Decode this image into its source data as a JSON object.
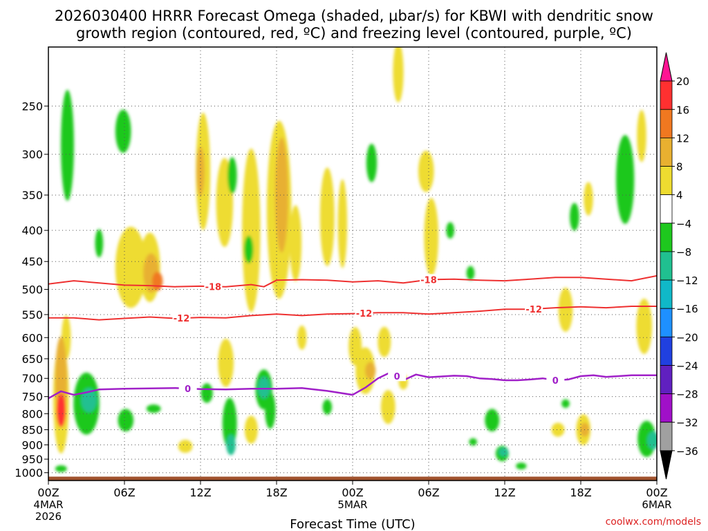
{
  "chart_data": {
    "type": "time-height contour",
    "title_line1": "2026030400 HRRR Forecast Omega (shaded, μbar/s) for KBWI with dendritic snow",
    "title_line2": "growth region (contoured, red, ºC) and freezing level (contoured, purple, ºC)",
    "xlabel": "Forecast Time (UTC)",
    "credit": "coolwx.com/models",
    "time_range_hours": [
      0,
      48
    ],
    "pressure_range_hpa": [
      1030,
      200
    ],
    "x_ticks": [
      {
        "hour": 0,
        "lines": [
          "00Z",
          "4MAR",
          "2026"
        ]
      },
      {
        "hour": 6,
        "lines": [
          "06Z"
        ]
      },
      {
        "hour": 12,
        "lines": [
          "12Z"
        ]
      },
      {
        "hour": 18,
        "lines": [
          "18Z"
        ]
      },
      {
        "hour": 24,
        "lines": [
          "00Z",
          "5MAR"
        ]
      },
      {
        "hour": 30,
        "lines": [
          "06Z"
        ]
      },
      {
        "hour": 36,
        "lines": [
          "12Z"
        ]
      },
      {
        "hour": 42,
        "lines": [
          "18Z"
        ]
      },
      {
        "hour": 48,
        "lines": [
          "00Z",
          "6MAR"
        ]
      }
    ],
    "y_ticks": [
      {
        "p": 250,
        "label": "250"
      },
      {
        "p": 300,
        "label": "300"
      },
      {
        "p": 350,
        "label": "350"
      },
      {
        "p": 400,
        "label": "400"
      },
      {
        "p": 450,
        "label": "450"
      },
      {
        "p": 500,
        "label": "500"
      },
      {
        "p": 550,
        "label": "550"
      },
      {
        "p": 600,
        "label": "600"
      },
      {
        "p": 650,
        "label": "650"
      },
      {
        "p": 700,
        "label": "700"
      },
      {
        "p": 750,
        "label": "750"
      },
      {
        "p": 800,
        "label": "800"
      },
      {
        "p": 850,
        "label": "850"
      },
      {
        "p": 900,
        "label": "900"
      },
      {
        "p": 950,
        "label": "950"
      },
      {
        "p": 1000,
        "label": "1000"
      }
    ],
    "colorbar": {
      "bins": [
        {
          "lo": 20,
          "hi": null,
          "color": "#ff1493"
        },
        {
          "lo": 16,
          "hi": 20,
          "color": "#ff3030"
        },
        {
          "lo": 12,
          "hi": 16,
          "color": "#f07820"
        },
        {
          "lo": 8,
          "hi": 12,
          "color": "#e8b030"
        },
        {
          "lo": 4,
          "hi": 8,
          "color": "#eedc30"
        },
        {
          "lo": -4,
          "hi": 4,
          "color": "#ffffff"
        },
        {
          "lo": -8,
          "hi": -4,
          "color": "#1ec81e"
        },
        {
          "lo": -12,
          "hi": -8,
          "color": "#20c090"
        },
        {
          "lo": -16,
          "hi": -12,
          "color": "#10b8c8"
        },
        {
          "lo": -20,
          "hi": -16,
          "color": "#1e90ff"
        },
        {
          "lo": -24,
          "hi": -20,
          "color": "#2040e0"
        },
        {
          "lo": -28,
          "hi": -24,
          "color": "#6020c0"
        },
        {
          "lo": -32,
          "hi": -28,
          "color": "#a010c8"
        },
        {
          "lo": -36,
          "hi": -32,
          "color": "#a0a0a0"
        },
        {
          "lo": null,
          "hi": -36,
          "color": "#000000"
        }
      ],
      "tick_labels": [
        "20",
        "16",
        "12",
        "8",
        "4",
        "−4",
        "−8",
        "−12",
        "−16",
        "−20",
        "−24",
        "−28",
        "−32",
        "−36"
      ]
    },
    "omega_regions": [
      {
        "t": 1.0,
        "p": 755,
        "dt": 0.8,
        "dp": 310,
        "value": 5
      },
      {
        "t": 1.0,
        "p": 700,
        "dt": 0.5,
        "dp": 220,
        "value": 10
      },
      {
        "t": 1.0,
        "p": 790,
        "dt": 0.3,
        "dp": 100,
        "value": 17
      },
      {
        "t": 1.5,
        "p": 290,
        "dt": 0.6,
        "dp": 120,
        "value": -6
      },
      {
        "t": 1.0,
        "p": 985,
        "dt": 0.5,
        "dp": 25,
        "value": -6
      },
      {
        "t": 3.0,
        "p": 770,
        "dt": 1.6,
        "dp": 180,
        "value": -6
      },
      {
        "t": 3.2,
        "p": 760,
        "dt": 0.8,
        "dp": 70,
        "value": -10
      },
      {
        "t": 4.0,
        "p": 420,
        "dt": 0.2,
        "dp": 45,
        "value": -6
      },
      {
        "t": 5.9,
        "p": 275,
        "dt": 0.8,
        "dp": 45,
        "value": -6
      },
      {
        "t": 6.1,
        "p": 820,
        "dt": 0.8,
        "dp": 70,
        "value": -6
      },
      {
        "t": 8.3,
        "p": 785,
        "dt": 0.7,
        "dp": 25,
        "value": -6
      },
      {
        "t": 6.5,
        "p": 460,
        "dt": 2.0,
        "dp": 140,
        "value": 5
      },
      {
        "t": 8.0,
        "p": 460,
        "dt": 1.2,
        "dp": 120,
        "value": 5
      },
      {
        "t": 8.1,
        "p": 470,
        "dt": 0.8,
        "dp": 70,
        "value": 10
      },
      {
        "t": 8.6,
        "p": 485,
        "dt": 0.4,
        "dp": 35,
        "value": 13
      },
      {
        "t": 10.8,
        "p": 905,
        "dt": 0.7,
        "dp": 45,
        "value": 5
      },
      {
        "t": 12.2,
        "p": 320,
        "dt": 0.7,
        "dp": 140,
        "value": 5
      },
      {
        "t": 12.0,
        "p": 320,
        "dt": 0.2,
        "dp": 60,
        "value": 10
      },
      {
        "t": 12.5,
        "p": 740,
        "dt": 0.5,
        "dp": 55,
        "value": -6
      },
      {
        "t": 13.9,
        "p": 360,
        "dt": 0.9,
        "dp": 120,
        "value": 5
      },
      {
        "t": 14.0,
        "p": 660,
        "dt": 0.8,
        "dp": 120,
        "value": 5
      },
      {
        "t": 14.3,
        "p": 830,
        "dt": 0.7,
        "dp": 160,
        "value": -6
      },
      {
        "t": 14.4,
        "p": 900,
        "dt": 0.3,
        "dp": 70,
        "value": -12
      },
      {
        "t": 14.5,
        "p": 325,
        "dt": 0.3,
        "dp": 45,
        "value": -6
      },
      {
        "t": 15.8,
        "p": 430,
        "dt": 0.3,
        "dp": 45,
        "value": -6
      },
      {
        "t": 16.0,
        "p": 400,
        "dt": 1.0,
        "dp": 240,
        "value": 5
      },
      {
        "t": 16.0,
        "p": 850,
        "dt": 0.6,
        "dp": 90,
        "value": 5
      },
      {
        "t": 17.0,
        "p": 730,
        "dt": 0.9,
        "dp": 110,
        "value": -6
      },
      {
        "t": 17.0,
        "p": 725,
        "dt": 0.5,
        "dp": 60,
        "value": -10
      },
      {
        "t": 17.5,
        "p": 790,
        "dt": 0.4,
        "dp": 110,
        "value": -6
      },
      {
        "t": 18.2,
        "p": 370,
        "dt": 1.5,
        "dp": 240,
        "value": 5
      },
      {
        "t": 18.4,
        "p": 350,
        "dt": 0.6,
        "dp": 150,
        "value": 10
      },
      {
        "t": 19.5,
        "p": 420,
        "dt": 0.5,
        "dp": 120,
        "value": 5
      },
      {
        "t": 20.0,
        "p": 600,
        "dt": 0.3,
        "dp": 55,
        "value": 5
      },
      {
        "t": 22.0,
        "p": 380,
        "dt": 0.7,
        "dp": 140,
        "value": 5
      },
      {
        "t": 22.0,
        "p": 780,
        "dt": 0.3,
        "dp": 45,
        "value": -6
      },
      {
        "t": 23.2,
        "p": 390,
        "dt": 0.3,
        "dp": 130,
        "value": 5
      },
      {
        "t": 25.5,
        "p": 310,
        "dt": 0.4,
        "dp": 45,
        "value": -6
      },
      {
        "t": 24.2,
        "p": 620,
        "dt": 0.6,
        "dp": 90,
        "value": 5
      },
      {
        "t": 25.0,
        "p": 680,
        "dt": 1.1,
        "dp": 120,
        "value": 5
      },
      {
        "t": 25.4,
        "p": 680,
        "dt": 0.4,
        "dp": 45,
        "value": 10
      },
      {
        "t": 26.5,
        "p": 610,
        "dt": 0.6,
        "dp": 70,
        "value": 5
      },
      {
        "t": 26.8,
        "p": 780,
        "dt": 0.7,
        "dp": 100,
        "value": 5
      },
      {
        "t": 27.6,
        "p": 220,
        "dt": 0.4,
        "dp": 50,
        "value": 5
      },
      {
        "t": 28.0,
        "p": 710,
        "dt": 0.3,
        "dp": 40,
        "value": 5
      },
      {
        "t": 29.8,
        "p": 320,
        "dt": 0.8,
        "dp": 50,
        "value": 5
      },
      {
        "t": 30.2,
        "p": 410,
        "dt": 0.7,
        "dp": 120,
        "value": 5
      },
      {
        "t": 31.7,
        "p": 400,
        "dt": 0.2,
        "dp": 25,
        "value": -6
      },
      {
        "t": 33.3,
        "p": 470,
        "dt": 0.2,
        "dp": 25,
        "value": -6
      },
      {
        "t": 33.5,
        "p": 890,
        "dt": 0.2,
        "dp": 25,
        "value": -6
      },
      {
        "t": 35.0,
        "p": 820,
        "dt": 0.7,
        "dp": 70,
        "value": -6
      },
      {
        "t": 35.8,
        "p": 930,
        "dt": 0.6,
        "dp": 55,
        "value": -6
      },
      {
        "t": 35.9,
        "p": 925,
        "dt": 0.3,
        "dp": 30,
        "value": -12
      },
      {
        "t": 37.3,
        "p": 975,
        "dt": 0.4,
        "dp": 25,
        "value": -6
      },
      {
        "t": 40.2,
        "p": 850,
        "dt": 0.6,
        "dp": 45,
        "value": 5
      },
      {
        "t": 40.8,
        "p": 540,
        "dt": 0.7,
        "dp": 90,
        "value": 5
      },
      {
        "t": 40.8,
        "p": 770,
        "dt": 0.2,
        "dp": 25,
        "value": -6
      },
      {
        "t": 41.5,
        "p": 380,
        "dt": 0.3,
        "dp": 40,
        "value": -6
      },
      {
        "t": 42.6,
        "p": 355,
        "dt": 0.3,
        "dp": 45,
        "value": 5
      },
      {
        "t": 42.2,
        "p": 850,
        "dt": 0.7,
        "dp": 100,
        "value": 5
      },
      {
        "t": 42.3,
        "p": 850,
        "dt": 0.3,
        "dp": 45,
        "value": 10
      },
      {
        "t": 45.5,
        "p": 330,
        "dt": 1.0,
        "dp": 110,
        "value": -6
      },
      {
        "t": 46.8,
        "p": 280,
        "dt": 0.3,
        "dp": 55,
        "value": 5
      },
      {
        "t": 47.0,
        "p": 575,
        "dt": 0.8,
        "dp": 120,
        "value": 5
      },
      {
        "t": 47.2,
        "p": 880,
        "dt": 1.0,
        "dp": 120,
        "value": -6
      },
      {
        "t": 47.7,
        "p": 885,
        "dt": 0.5,
        "dp": 60,
        "value": -10
      },
      {
        "t": 1.4,
        "p": 600,
        "dt": 0.3,
        "dp": 100,
        "value": 5
      }
    ],
    "contours": [
      {
        "name": "dgz -18",
        "label": "-18",
        "color": "#ee3030",
        "width": 2,
        "points": [
          [
            0,
            490
          ],
          [
            2,
            484
          ],
          [
            4,
            488
          ],
          [
            6,
            492
          ],
          [
            8,
            493
          ],
          [
            10,
            495
          ],
          [
            12,
            494
          ],
          [
            14,
            495
          ],
          [
            16,
            491
          ],
          [
            17,
            495
          ],
          [
            18,
            483
          ],
          [
            20,
            482
          ],
          [
            22,
            483
          ],
          [
            24,
            486
          ],
          [
            26,
            484
          ],
          [
            28,
            488
          ],
          [
            30,
            482
          ],
          [
            32,
            481
          ],
          [
            34,
            483
          ],
          [
            36,
            484
          ],
          [
            38,
            481
          ],
          [
            40,
            478
          ],
          [
            42,
            478
          ],
          [
            44,
            481
          ],
          [
            46,
            484
          ],
          [
            48,
            475
          ]
        ],
        "label_positions": [
          13,
          30.0
        ]
      },
      {
        "name": "dgz -12",
        "label": "-12",
        "color": "#ee3030",
        "width": 2,
        "points": [
          [
            0,
            557
          ],
          [
            2,
            557
          ],
          [
            4,
            561
          ],
          [
            6,
            558
          ],
          [
            8,
            555
          ],
          [
            10,
            558
          ],
          [
            12,
            556
          ],
          [
            14,
            557
          ],
          [
            16,
            552
          ],
          [
            18,
            549
          ],
          [
            20,
            552
          ],
          [
            22,
            549
          ],
          [
            24,
            548
          ],
          [
            26,
            546
          ],
          [
            28,
            546
          ],
          [
            30,
            549
          ],
          [
            32,
            546
          ],
          [
            34,
            543
          ],
          [
            36,
            539
          ],
          [
            38,
            539
          ],
          [
            40,
            536
          ],
          [
            42,
            534
          ],
          [
            44,
            536
          ],
          [
            46,
            533
          ],
          [
            48,
            533
          ]
        ],
        "label_positions": [
          10.5,
          24.9,
          38.3
        ]
      },
      {
        "name": "freezing level",
        "label": "0",
        "color": "#a020c8",
        "width": 2.5,
        "points": [
          [
            0,
            755
          ],
          [
            1,
            735
          ],
          [
            2,
            745
          ],
          [
            3,
            738
          ],
          [
            4,
            730
          ],
          [
            6,
            728
          ],
          [
            8,
            727
          ],
          [
            10,
            726
          ],
          [
            12,
            729
          ],
          [
            14,
            730
          ],
          [
            16,
            728
          ],
          [
            18,
            728
          ],
          [
            20,
            726
          ],
          [
            22,
            734
          ],
          [
            24,
            745
          ],
          [
            25,
            725
          ],
          [
            26,
            700
          ],
          [
            27,
            684
          ],
          [
            28,
            705
          ],
          [
            29,
            690
          ],
          [
            30,
            697
          ],
          [
            31,
            695
          ],
          [
            32,
            693
          ],
          [
            33,
            694
          ],
          [
            34,
            700
          ],
          [
            35,
            702
          ],
          [
            36,
            705
          ],
          [
            37,
            705
          ],
          [
            38,
            703
          ],
          [
            39,
            700
          ],
          [
            40,
            705
          ],
          [
            41,
            703
          ],
          [
            42,
            694
          ],
          [
            43,
            692
          ],
          [
            44,
            696
          ],
          [
            46,
            692
          ],
          [
            48,
            692
          ]
        ],
        "label_positions": [
          11,
          27.5,
          40
        ]
      }
    ],
    "terrain_band": {
      "from_p": 1015,
      "to_p": 1030,
      "color": "#a0522d"
    }
  }
}
